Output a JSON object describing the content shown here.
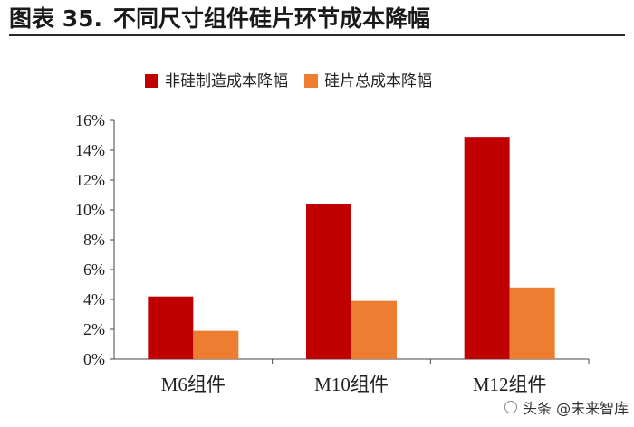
{
  "header": {
    "figure_label": "图表 35.",
    "title": "不同尺寸组件硅片环节成本降幅"
  },
  "colors": {
    "series_1": "#c00000",
    "series_2": "#ed7d31"
  },
  "chart_data": {
    "type": "bar",
    "categories": [
      "M6组件",
      "M10组件",
      "M12组件"
    ],
    "series": [
      {
        "name": "非硅制造成本降幅",
        "values": [
          4.2,
          10.4,
          14.9
        ]
      },
      {
        "name": "硅片总成本降幅",
        "values": [
          1.9,
          3.9,
          4.8
        ]
      }
    ],
    "ylim": [
      0,
      16
    ],
    "yticks": [
      "0%",
      "2%",
      "4%",
      "6%",
      "8%",
      "10%",
      "12%",
      "14%",
      "16%"
    ],
    "legend_position": "top",
    "grid": false
  },
  "watermark": {
    "text": "头条 @未来智库"
  }
}
